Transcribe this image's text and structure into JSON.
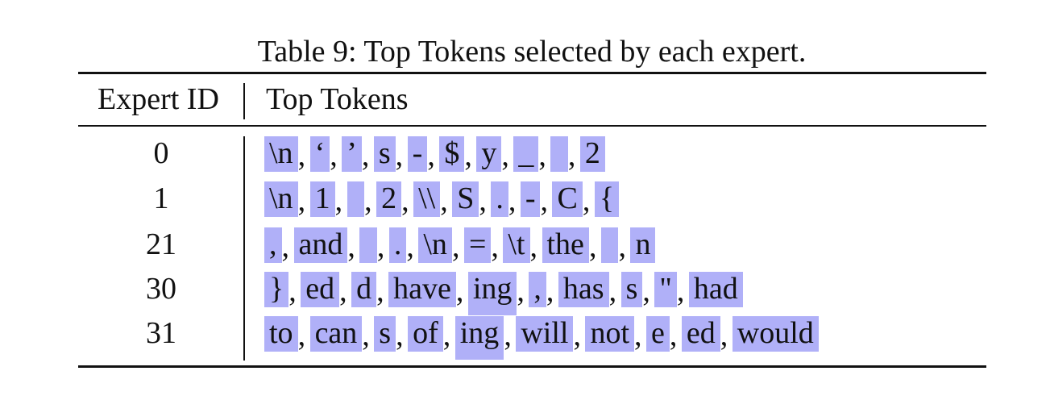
{
  "caption": "Table 9: Top Tokens selected by each expert.",
  "header": {
    "expert_id": "Expert ID",
    "top_tokens": "Top Tokens"
  },
  "separator": ",",
  "rows": [
    {
      "expert_id": "0",
      "tokens": [
        "\\n",
        "‘",
        "’",
        "s",
        "-",
        "$",
        "y",
        "_",
        " ",
        "2"
      ]
    },
    {
      "expert_id": "1",
      "tokens": [
        "\\n",
        "1",
        " ",
        "2",
        "\\\\",
        "S",
        ".",
        "-",
        "C",
        "{"
      ]
    },
    {
      "expert_id": "21",
      "tokens": [
        ",",
        "and",
        " ",
        ".",
        "\\n",
        "=",
        "\\t",
        "the",
        " ",
        "n"
      ]
    },
    {
      "expert_id": "30",
      "tokens": [
        "}",
        "ed",
        "d",
        "have",
        "ing",
        ",",
        "has",
        "s",
        "\"",
        "had"
      ]
    },
    {
      "expert_id": "31",
      "tokens": [
        "to",
        "can",
        "s",
        "of",
        "ing",
        "will",
        "not",
        "e",
        "ed",
        "would"
      ]
    }
  ],
  "token_highlight_color": "#b0b0f8"
}
